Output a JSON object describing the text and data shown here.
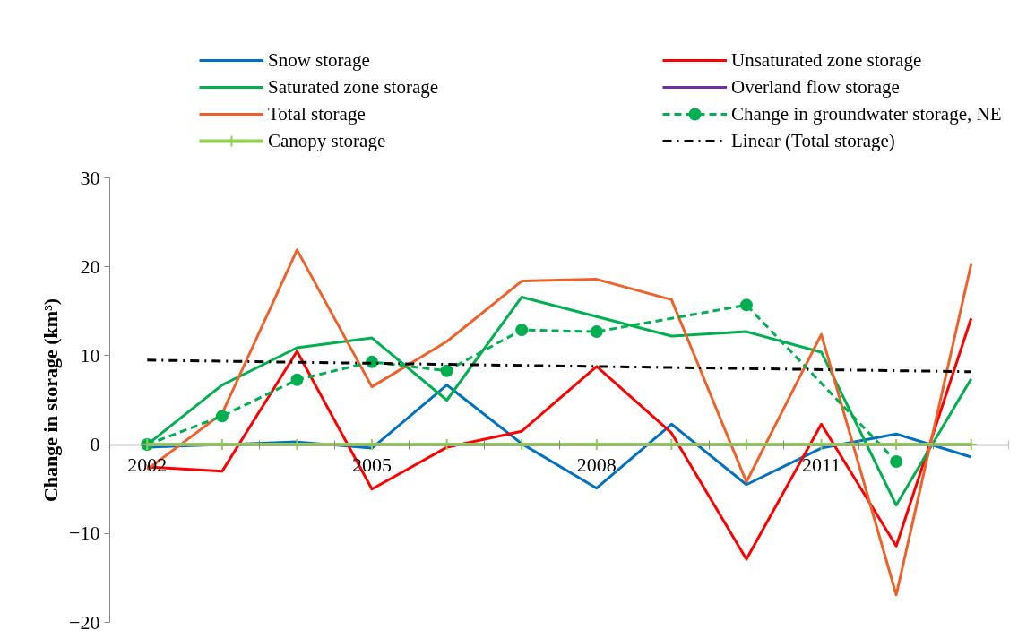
{
  "chart_data": {
    "type": "line",
    "ylabel": "Change in storage (km³)",
    "categories": [
      "2002",
      null,
      null,
      "2005",
      null,
      null,
      "2008",
      null,
      null,
      "2011",
      null,
      null
    ],
    "ylim": [
      -20,
      30
    ],
    "yticks": [
      -20,
      -10,
      0,
      10,
      20,
      30
    ],
    "grid": false,
    "legend": "top",
    "marker": "none",
    "line_style": "solid",
    "series": [
      {
        "name": "Snow storage",
        "color": "#0070c0",
        "values": [
          -0.3,
          0,
          0.3,
          -0.4,
          6.7,
          0.1,
          -4.9,
          2.3,
          -4.5,
          -0.4,
          1.2,
          -1.4
        ]
      },
      {
        "name": "Unsaturated zone storage",
        "color": "#ff0000",
        "values": [
          -2.5,
          -3.0,
          10.5,
          -5.0,
          -0.3,
          1.5,
          8.8,
          1.3,
          -12.9,
          2.3,
          -11.4,
          14.2
        ]
      },
      {
        "name": "Saturated zone storage",
        "color": "#00b050",
        "values": [
          0,
          6.7,
          10.9,
          12.0,
          5.0,
          16.6,
          14.4,
          12.2,
          12.7,
          10.4,
          -6.8,
          7.4
        ]
      },
      {
        "name": "Overland flow storage",
        "color": "#7030a0",
        "values": [
          null,
          null,
          null,
          null,
          null,
          null,
          null,
          null,
          null,
          null,
          null,
          null
        ]
      },
      {
        "name": "Total storage",
        "color": "#f0612a",
        "values": [
          -2.8,
          3.5,
          21.9,
          6.5,
          11.6,
          18.4,
          18.6,
          16.3,
          -4.2,
          12.4,
          -16.9,
          20.3
        ]
      },
      {
        "name": "Change in groundwater storage, NE",
        "color": "#00b050",
        "marker": "circle",
        "line_style": "dashed",
        "values": [
          0,
          3.2,
          7.3,
          9.3,
          8.3,
          12.9,
          12.7,
          null,
          15.7,
          null,
          -1.9,
          null
        ]
      },
      {
        "name": "Canopy storage",
        "color": "#92d050",
        "marker": "cross",
        "values": [
          0,
          0,
          0,
          0,
          0,
          0,
          0,
          0,
          0,
          0,
          0,
          0
        ]
      },
      {
        "name": "Linear (Total storage)",
        "color": "#000000",
        "line_style": "dashdot",
        "values": [
          9.5,
          null,
          null,
          null,
          null,
          null,
          null,
          null,
          null,
          null,
          null,
          8.2
        ]
      }
    ]
  }
}
